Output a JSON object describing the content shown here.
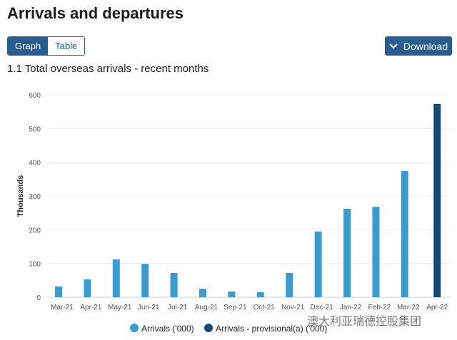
{
  "header": {
    "title": "Arrivals and departures",
    "tab_graph": "Graph",
    "tab_table": "Table",
    "download_label": "Download"
  },
  "subtitle": "1.1 Total overseas arrivals - recent months",
  "watermark": "澳大利亚瑞德控股集团",
  "chart_data": {
    "type": "bar",
    "title": "1.1 Total overseas arrivals - recent months",
    "xlabel": "",
    "ylabel": "Thousands",
    "ylim": [
      0,
      600
    ],
    "yticks": [
      0,
      100,
      200,
      300,
      400,
      500,
      600
    ],
    "grid": true,
    "legend_position": "bottom",
    "categories": [
      "Mar-21",
      "Apr-21",
      "May-21",
      "Jun-21",
      "Jul-21",
      "Aug-21",
      "Sep-21",
      "Oct-21",
      "Nov-21",
      "Dec-21",
      "Jan-22",
      "Feb-22",
      "Mar-22",
      "Apr-22"
    ],
    "series": [
      {
        "name": "Arrivals ('000)",
        "color": "#3a9ad2",
        "values": [
          32,
          53,
          112,
          99,
          72,
          25,
          17,
          15,
          72,
          195,
          262,
          268,
          374,
          null
        ]
      },
      {
        "name": "Arrivals - provisional(a) ('000)",
        "color": "#134a72",
        "values": [
          null,
          null,
          null,
          null,
          null,
          null,
          null,
          null,
          null,
          null,
          null,
          null,
          null,
          573
        ]
      }
    ]
  }
}
